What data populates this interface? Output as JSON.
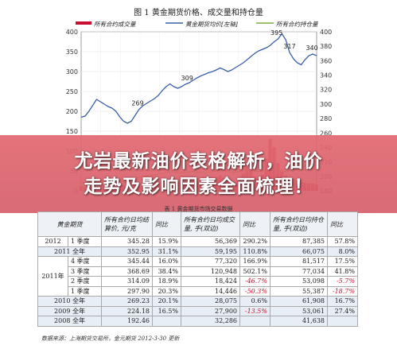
{
  "figure_title": "图 1  黄金期货价格、成交量和持仓量",
  "chart_data": {
    "type": "line",
    "title": "图 1  黄金期货价格、成交量和持仓量",
    "legend": [
      "所有合约成交量",
      "黄金期货均价[左轴]",
      "所有合约持仓量"
    ],
    "left_ticks": [
      "0",
      "50",
      "100",
      "150",
      "200",
      "250",
      "300",
      "350",
      "400"
    ],
    "right_ticks": [
      "180",
      "200",
      "220",
      "240",
      "260",
      "280",
      "300",
      "320",
      "340",
      "360",
      "380",
      "400"
    ],
    "ylim_left": [
      0,
      400
    ],
    "ylim_right": [
      180,
      400
    ],
    "annotations": [
      {
        "label": "269",
        "index": 0.24
      },
      {
        "label": "309",
        "index": 0.45
      },
      {
        "label": "395",
        "index": 0.83
      },
      {
        "label": "317",
        "index": 0.885
      },
      {
        "label": "340",
        "index": 0.98
      }
    ],
    "price_series": {
      "name": "黄金期货均价[左轴]",
      "values": [
        185,
        188,
        200,
        215,
        230,
        224,
        218,
        212,
        208,
        200,
        186,
        175,
        170,
        175,
        190,
        205,
        214,
        220,
        226,
        232,
        240,
        252,
        262,
        269,
        262,
        258,
        262,
        268,
        272,
        278,
        284,
        289,
        293,
        297,
        300,
        304,
        309,
        305,
        300,
        304,
        310,
        316,
        322,
        330,
        338,
        346,
        352,
        356,
        360,
        366,
        375,
        382,
        395,
        380,
        348,
        332,
        322,
        317,
        330,
        340,
        344,
        340
      ]
    },
    "volume_series": {
      "name": "所有合约成交量",
      "values": [
        12,
        10,
        9,
        10,
        12,
        12,
        11,
        10,
        9,
        10,
        12,
        14,
        15,
        13,
        11,
        10,
        9,
        10,
        14,
        16,
        20,
        24,
        28,
        30,
        26,
        22,
        20,
        24,
        28,
        26,
        22,
        20,
        18,
        24,
        30,
        34,
        38,
        32,
        26,
        20,
        22,
        30,
        44,
        60,
        50,
        36,
        30,
        40,
        80,
        130,
        110,
        70,
        48,
        38,
        34,
        30,
        26,
        22,
        20,
        18,
        18,
        16
      ]
    },
    "open_interest_series": {
      "name": "所有合约持仓量",
      "values": [
        18,
        20,
        22,
        24,
        26,
        26,
        25,
        24,
        24,
        25,
        26,
        27,
        28,
        30,
        32,
        34,
        36,
        38,
        38,
        40,
        42,
        44,
        46,
        48,
        47,
        46,
        45,
        46,
        47,
        48,
        47,
        46,
        45,
        46,
        48,
        50,
        52,
        50,
        48,
        46,
        47,
        48,
        50,
        54,
        52,
        50,
        48,
        50,
        54,
        58,
        56,
        52,
        50,
        48,
        50,
        52,
        54,
        55,
        53,
        54,
        55,
        54
      ]
    }
  },
  "banner": {
    "line1": "尤岩最新油价表格解析，油价",
    "line2": "走势及影响因素全面梳理！"
  },
  "table_caption": "表 1  黄金期货市场交易数据",
  "table": {
    "headers": [
      "黄金期货",
      "所有合约日均结算价, 元/克",
      "同比",
      "所有合约日均成交量, 手(双边)",
      "同比",
      "所有合约日均持仓量, 手(双边)",
      "同比"
    ],
    "rows": [
      {
        "year": "2012",
        "period": "1 季度",
        "price": "345.28",
        "p_yoy": "15.9%",
        "vol": "56,369",
        "v_yoy": "290.2%",
        "oi": "87,385",
        "oi_yoy": "57.8%",
        "p_red": false,
        "v_red": false,
        "oi_red": false
      },
      {
        "year": "2011 全年",
        "period": "",
        "price": "352.95",
        "p_yoy": "31.1%",
        "vol": "59,195",
        "v_yoy": "110.8%",
        "oi": "66,075",
        "oi_yoy": "8.0%",
        "p_red": false,
        "v_red": false,
        "oi_red": false,
        "full": true
      },
      {
        "year": "2011年",
        "period": "4 季度",
        "price": "345.44",
        "p_yoy": "16.0%",
        "vol": "77,320",
        "v_yoy": "166.9%",
        "oi": "81,517",
        "oi_yoy": "17.5%",
        "p_red": false,
        "v_red": false,
        "oi_red": false
      },
      {
        "year": "",
        "period": "3 季度",
        "price": "368.69",
        "p_yoy": "38.4%",
        "vol": "120,948",
        "v_yoy": "502.1%",
        "oi": "77,034",
        "oi_yoy": "41.8%",
        "p_red": false,
        "v_red": false,
        "oi_red": false
      },
      {
        "year": "",
        "period": "2 季度",
        "price": "314.09",
        "p_yoy": "18.9%",
        "vol": "18,424",
        "v_yoy": "-46.7%",
        "oi": "53,098",
        "oi_yoy": "-5.7%",
        "p_red": false,
        "v_red": true,
        "oi_red": true
      },
      {
        "year": "",
        "period": "1 季度",
        "price": "297.90",
        "p_yoy": "20.3%",
        "vol": "14,446",
        "v_yoy": "-50.3%",
        "oi": "55,387",
        "oi_yoy": "-18.7%",
        "p_red": false,
        "v_red": true,
        "oi_red": true
      },
      {
        "year": "2010 全年",
        "period": "",
        "price": "269.23",
        "p_yoy": "20.1%",
        "vol": "28,075",
        "v_yoy": "0.6%",
        "oi": "61,908",
        "oi_yoy": "16.7%",
        "p_red": false,
        "v_red": false,
        "oi_red": false,
        "full": true
      },
      {
        "year": "2009 全年",
        "period": "",
        "price": "224.18",
        "p_yoy": "16.5%",
        "vol": "27,900",
        "v_yoy": "-13.5%",
        "oi": "53,061",
        "oi_yoy": "27.4%",
        "p_red": false,
        "v_red": true,
        "oi_red": false,
        "full": true
      },
      {
        "year": "2008 全年",
        "period": "",
        "price": "192.46",
        "p_yoy": "",
        "vol": "32,286",
        "v_yoy": "",
        "oi": "41,638",
        "oi_yoy": "",
        "p_red": false,
        "v_red": false,
        "oi_red": false,
        "full": true
      }
    ]
  },
  "footnote": "数据来源：上海期货交易所，金元期货  2012-3-30 更新",
  "colors": {
    "price": "#3a5fa8",
    "volume": "#c8102e",
    "open_interest": "#7fae3a",
    "banner": "#e06a72"
  }
}
